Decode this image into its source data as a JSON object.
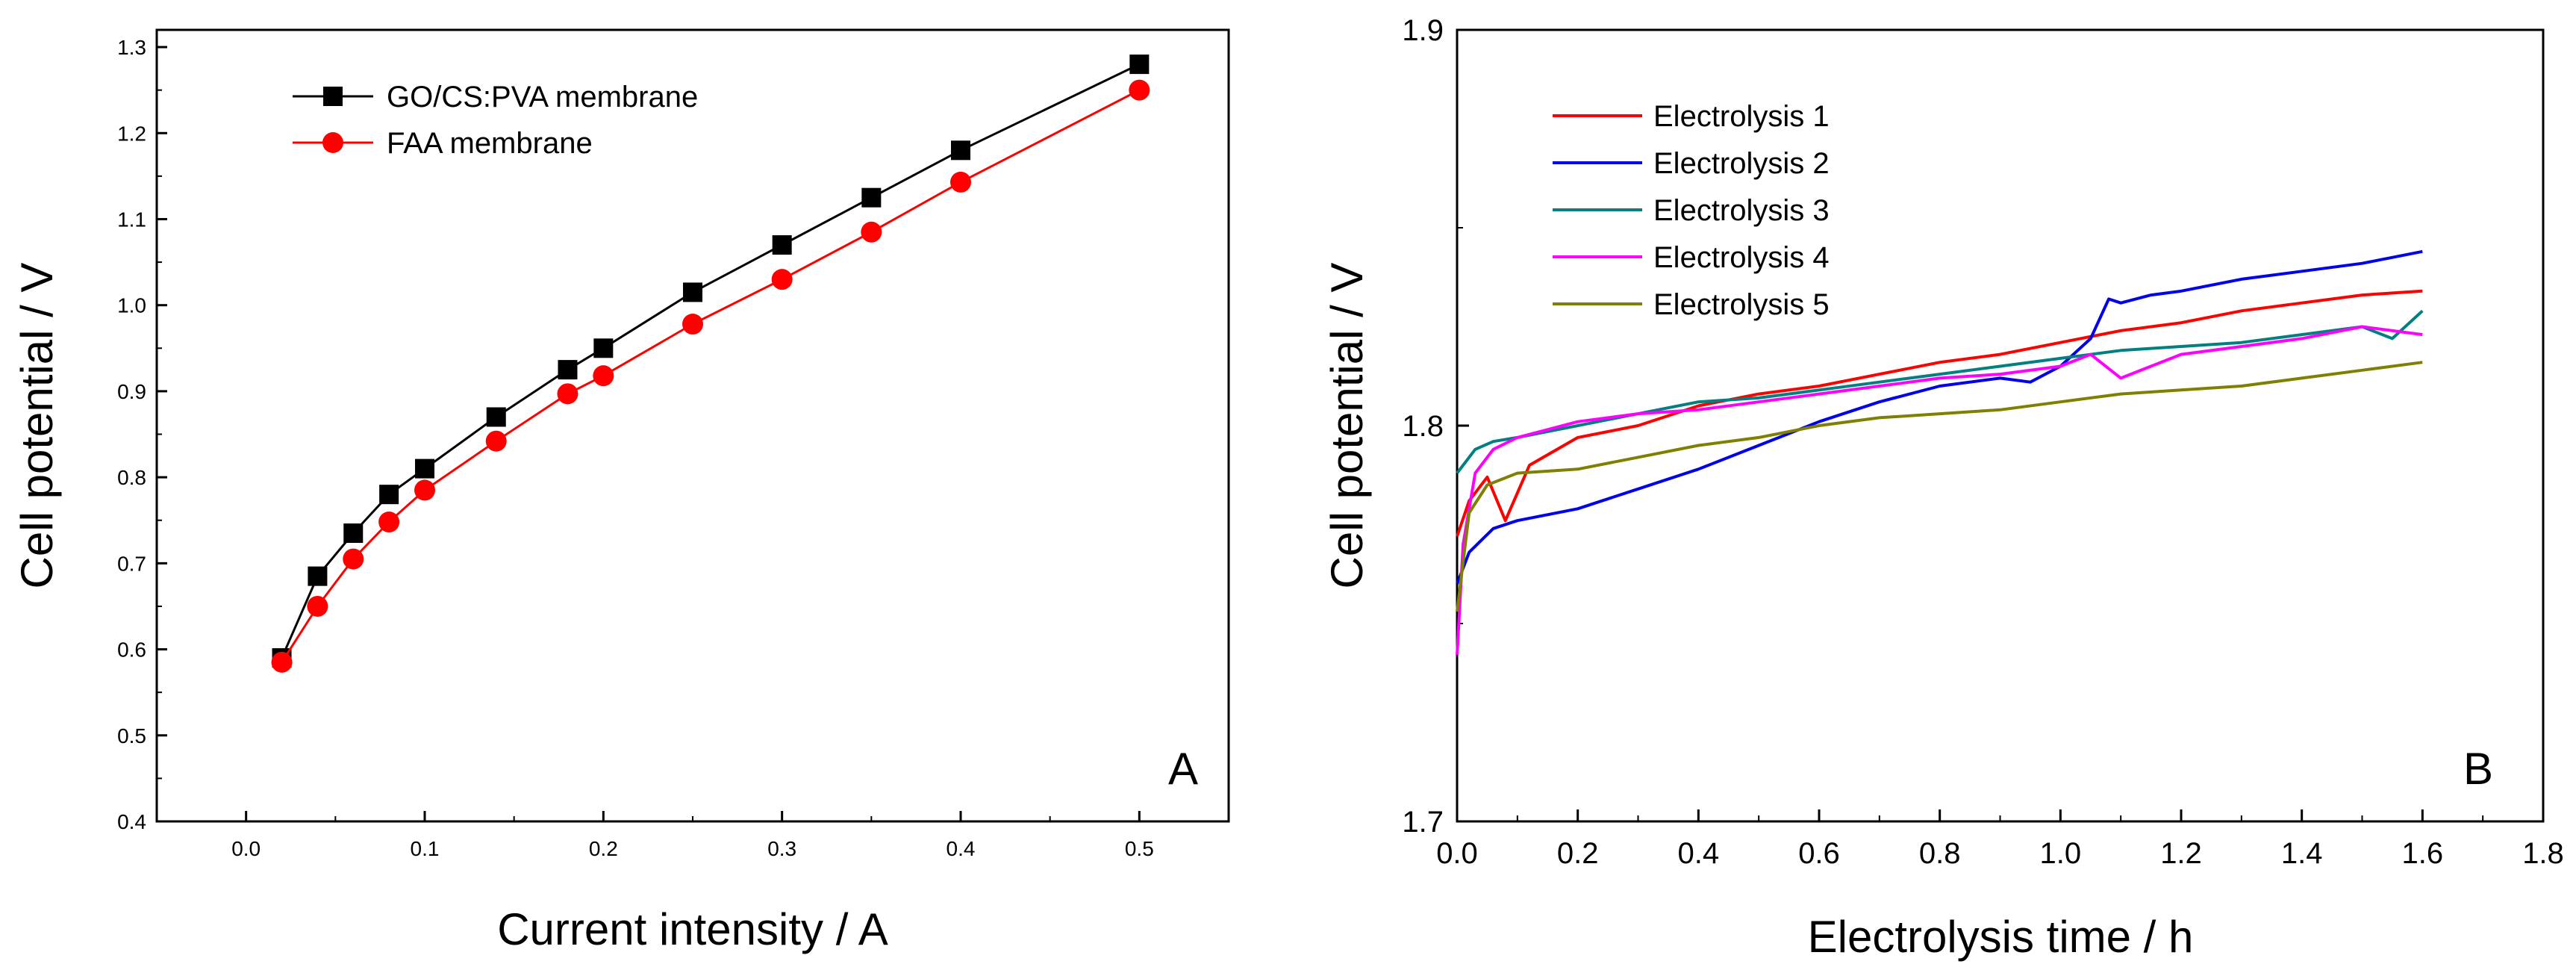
{
  "chart_data": [
    {
      "type": "line",
      "panel_label": "A",
      "xlabel": "Current intensity / A",
      "ylabel": "Cell potential / V",
      "xlim": [
        -0.05,
        0.55
      ],
      "ylim": [
        0.4,
        1.32
      ],
      "xticks": [
        0.0,
        0.1,
        0.2,
        0.3,
        0.4,
        0.5
      ],
      "xtick_labels": [
        "0.0",
        "0.1",
        "0.2",
        "0.3",
        "0.4",
        "0.5"
      ],
      "yticks": [
        0.4,
        0.5,
        0.6,
        0.7,
        0.8,
        0.9,
        1.0,
        1.1,
        1.2,
        1.3
      ],
      "ytick_labels": [
        "0.4",
        "0.5",
        "0.6",
        "0.7",
        "0.8",
        "0.9",
        "1.0",
        "1.1",
        "1.2",
        "1.3"
      ],
      "legend_position": "top-left",
      "series": [
        {
          "name": "GO/CS:PVA membrane",
          "color": "#000000",
          "marker": "square",
          "x": [
            0.02,
            0.04,
            0.06,
            0.08,
            0.1,
            0.14,
            0.18,
            0.2,
            0.25,
            0.3,
            0.35,
            0.4,
            0.5
          ],
          "y": [
            0.59,
            0.685,
            0.735,
            0.78,
            0.81,
            0.87,
            0.925,
            0.95,
            1.015,
            1.07,
            1.125,
            1.18,
            1.28
          ]
        },
        {
          "name": "FAA membrane",
          "color": "#ff0000",
          "marker": "circle",
          "x": [
            0.02,
            0.04,
            0.06,
            0.08,
            0.1,
            0.14,
            0.18,
            0.2,
            0.25,
            0.3,
            0.35,
            0.4,
            0.5
          ],
          "y": [
            0.585,
            0.65,
            0.705,
            0.748,
            0.785,
            0.842,
            0.897,
            0.918,
            0.978,
            1.03,
            1.085,
            1.143,
            1.25
          ]
        }
      ]
    },
    {
      "type": "line",
      "panel_label": "B",
      "xlabel": "Electrolysis time / h",
      "ylabel": "Cell potential / V",
      "xlim": [
        0.0,
        1.8
      ],
      "ylim": [
        1.7,
        1.9
      ],
      "xticks": [
        0.0,
        0.2,
        0.4,
        0.6,
        0.8,
        1.0,
        1.2,
        1.4,
        1.6,
        1.8
      ],
      "xtick_labels": [
        "0.0",
        "0.2",
        "0.4",
        "0.6",
        "0.8",
        "1.0",
        "1.2",
        "1.4",
        "1.6",
        "1.8"
      ],
      "yticks": [
        1.7,
        1.8,
        1.9
      ],
      "ytick_labels": [
        "1.7",
        "1.8",
        "1.9"
      ],
      "legend_position": "top-left",
      "series": [
        {
          "name": "Electrolysis 1",
          "color": "#ff0000",
          "x": [
            0.0,
            0.02,
            0.05,
            0.08,
            0.12,
            0.2,
            0.3,
            0.4,
            0.5,
            0.6,
            0.7,
            0.8,
            0.9,
            1.0,
            1.1,
            1.2,
            1.3,
            1.4,
            1.5,
            1.6
          ],
          "y": [
            1.772,
            1.781,
            1.787,
            1.776,
            1.79,
            1.797,
            1.8,
            1.805,
            1.808,
            1.81,
            1.813,
            1.816,
            1.818,
            1.821,
            1.824,
            1.826,
            1.829,
            1.831,
            1.833,
            1.834
          ]
        },
        {
          "name": "Electrolysis 2",
          "color": "#0000ee",
          "x": [
            0.0,
            0.02,
            0.06,
            0.1,
            0.2,
            0.3,
            0.4,
            0.5,
            0.6,
            0.7,
            0.8,
            0.9,
            0.95,
            1.0,
            1.05,
            1.08,
            1.1,
            1.15,
            1.2,
            1.3,
            1.4,
            1.5,
            1.6
          ],
          "y": [
            1.76,
            1.768,
            1.774,
            1.776,
            1.779,
            1.784,
            1.789,
            1.795,
            1.801,
            1.806,
            1.81,
            1.812,
            1.811,
            1.815,
            1.822,
            1.832,
            1.831,
            1.833,
            1.834,
            1.837,
            1.839,
            1.841,
            1.844
          ]
        },
        {
          "name": "Electrolysis 3",
          "color": "#008080",
          "x": [
            0.0,
            0.03,
            0.06,
            0.1,
            0.2,
            0.3,
            0.4,
            0.5,
            0.6,
            0.7,
            0.8,
            0.9,
            1.0,
            1.1,
            1.2,
            1.3,
            1.4,
            1.5,
            1.55,
            1.6
          ],
          "y": [
            1.788,
            1.794,
            1.796,
            1.797,
            1.8,
            1.803,
            1.806,
            1.807,
            1.809,
            1.811,
            1.813,
            1.815,
            1.817,
            1.819,
            1.82,
            1.821,
            1.823,
            1.825,
            1.822,
            1.829
          ]
        },
        {
          "name": "Electrolysis 4",
          "color": "#ff00ff",
          "x": [
            0.0,
            0.01,
            0.03,
            0.06,
            0.1,
            0.2,
            0.3,
            0.4,
            0.5,
            0.6,
            0.7,
            0.8,
            0.9,
            1.0,
            1.05,
            1.1,
            1.15,
            1.2,
            1.3,
            1.4,
            1.5,
            1.6
          ],
          "y": [
            1.742,
            1.77,
            1.788,
            1.794,
            1.797,
            1.801,
            1.803,
            1.804,
            1.806,
            1.808,
            1.81,
            1.812,
            1.813,
            1.815,
            1.818,
            1.812,
            1.815,
            1.818,
            1.82,
            1.822,
            1.825,
            1.823
          ]
        },
        {
          "name": "Electrolysis 5",
          "color": "#808000",
          "x": [
            0.0,
            0.02,
            0.05,
            0.1,
            0.2,
            0.3,
            0.4,
            0.5,
            0.6,
            0.7,
            0.8,
            0.9,
            1.0,
            1.1,
            1.2,
            1.3,
            1.4,
            1.5,
            1.6
          ],
          "y": [
            1.753,
            1.778,
            1.785,
            1.788,
            1.789,
            1.792,
            1.795,
            1.797,
            1.8,
            1.802,
            1.803,
            1.804,
            1.806,
            1.808,
            1.809,
            1.81,
            1.812,
            1.814,
            1.816
          ]
        }
      ]
    }
  ]
}
